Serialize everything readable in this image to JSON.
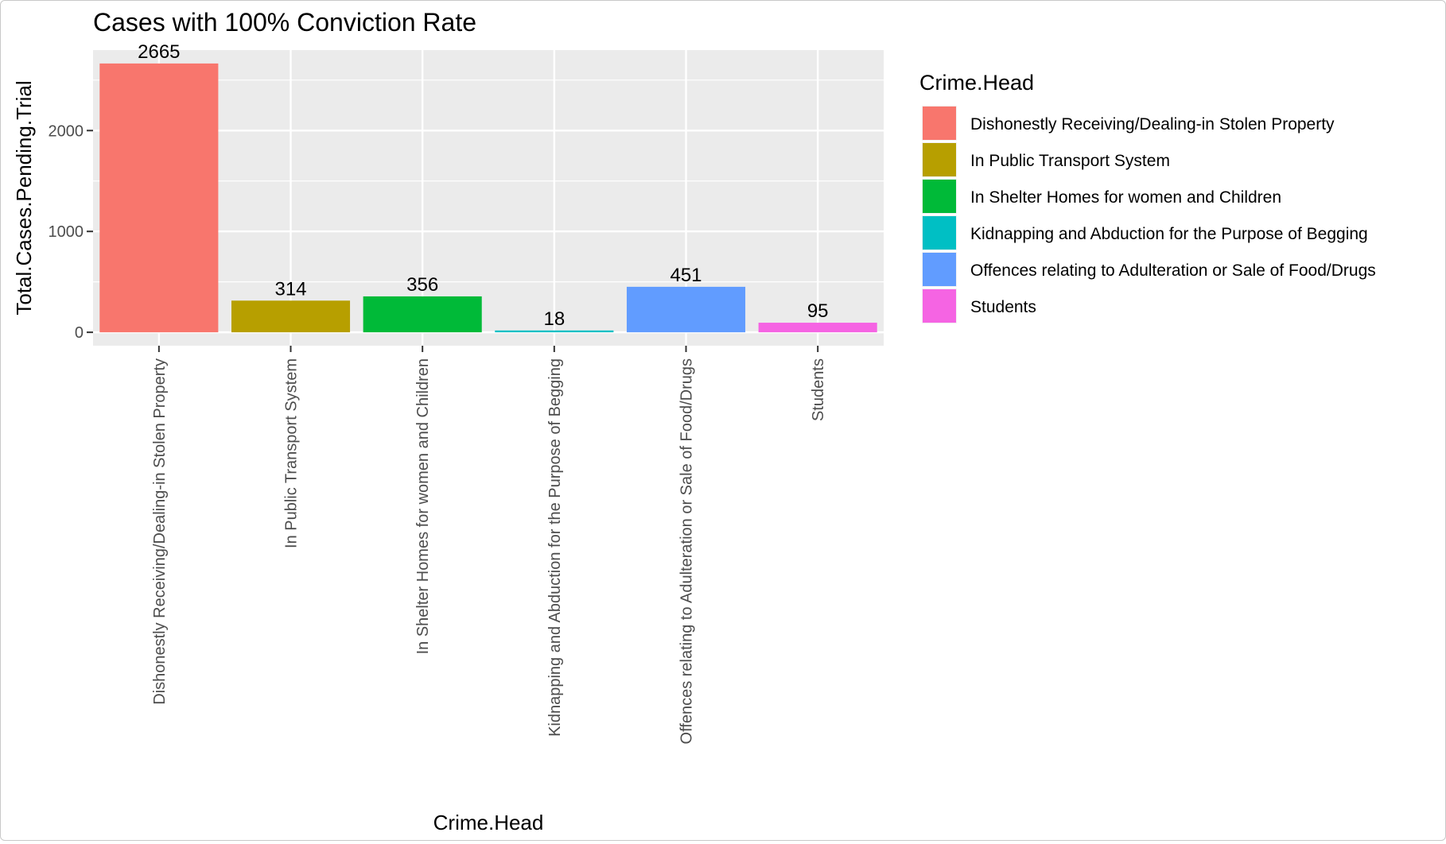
{
  "chart_data": {
    "type": "bar",
    "title": "Cases with 100% Conviction Rate",
    "xlabel": "Crime.Head",
    "ylabel": "Total.Cases.Pending.Trial",
    "categories": [
      "Dishonestly Receiving/Dealing-in Stolen Property",
      "In Public Transport System",
      "In Shelter Homes for women and Children",
      "Kidnapping and Abduction for the Purpose of Begging",
      "Offences relating to Adulteration or Sale of Food/Drugs",
      "Students"
    ],
    "values": [
      2665,
      314,
      356,
      18,
      451,
      95
    ],
    "colors": [
      "#F8766D",
      "#B79F00",
      "#00BA38",
      "#00BFC4",
      "#619CFF",
      "#F564E3"
    ],
    "yticks": [
      0,
      1000,
      2000
    ],
    "ylim": [
      -133,
      2798
    ],
    "grid": true,
    "panel_background": "#EBEBEB",
    "legend": {
      "title": "Crime.Head",
      "placement": "right",
      "entries": [
        "Dishonestly Receiving/Dealing-in Stolen Property",
        "In Public Transport System",
        "In Shelter Homes for women and Children",
        "Kidnapping and Abduction for the Purpose of Begging",
        "Offences relating to Adulteration or Sale of Food/Drugs",
        "Students"
      ]
    }
  }
}
